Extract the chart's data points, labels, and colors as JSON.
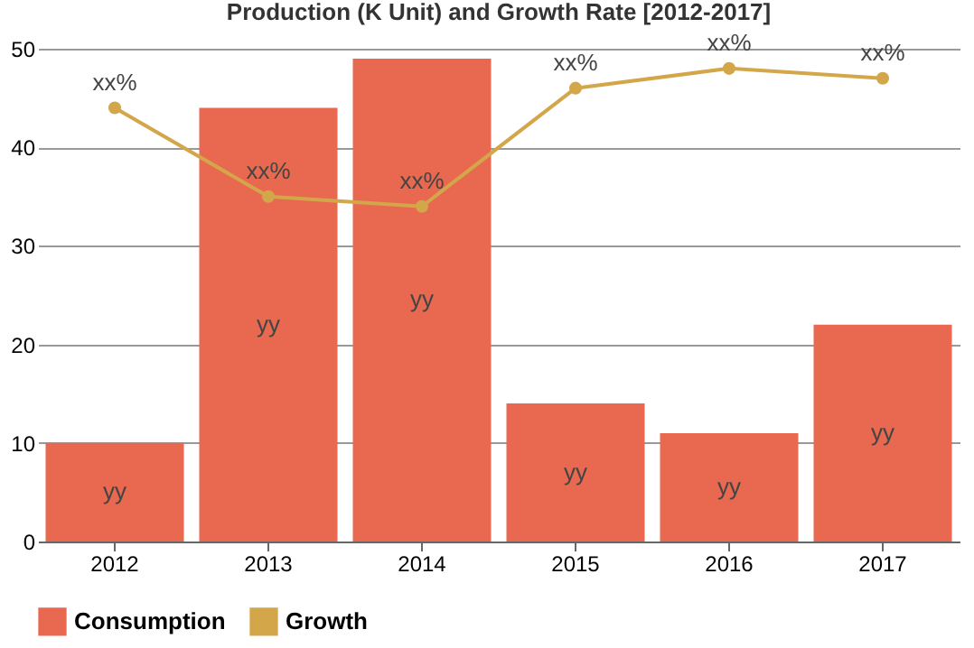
{
  "chart_data": {
    "type": "bar",
    "title": "Production (K Unit) and Growth Rate [2012-2017]",
    "categories": [
      "2012",
      "2013",
      "2014",
      "2015",
      "2016",
      "2017"
    ],
    "series": [
      {
        "name": "Consumption",
        "color": "#e8694f",
        "values": [
          10,
          44,
          49,
          14,
          11,
          22
        ],
        "value_labels": [
          "yy",
          "yy",
          "yy",
          "yy",
          "yy",
          "yy"
        ]
      },
      {
        "name": "Growth",
        "type": "line",
        "color": "#d4a64a",
        "values": [
          44,
          35,
          34,
          46,
          48,
          47
        ],
        "value_labels": [
          "xx%",
          "xx%",
          "xx%",
          "xx%",
          "xx%",
          "xx%"
        ]
      }
    ],
    "ylim": [
      0,
      50
    ],
    "yticks": [
      0,
      10,
      20,
      30,
      40,
      50
    ],
    "grid": "y",
    "legend": "bottom",
    "marker": "circle",
    "line_style": "solid"
  }
}
